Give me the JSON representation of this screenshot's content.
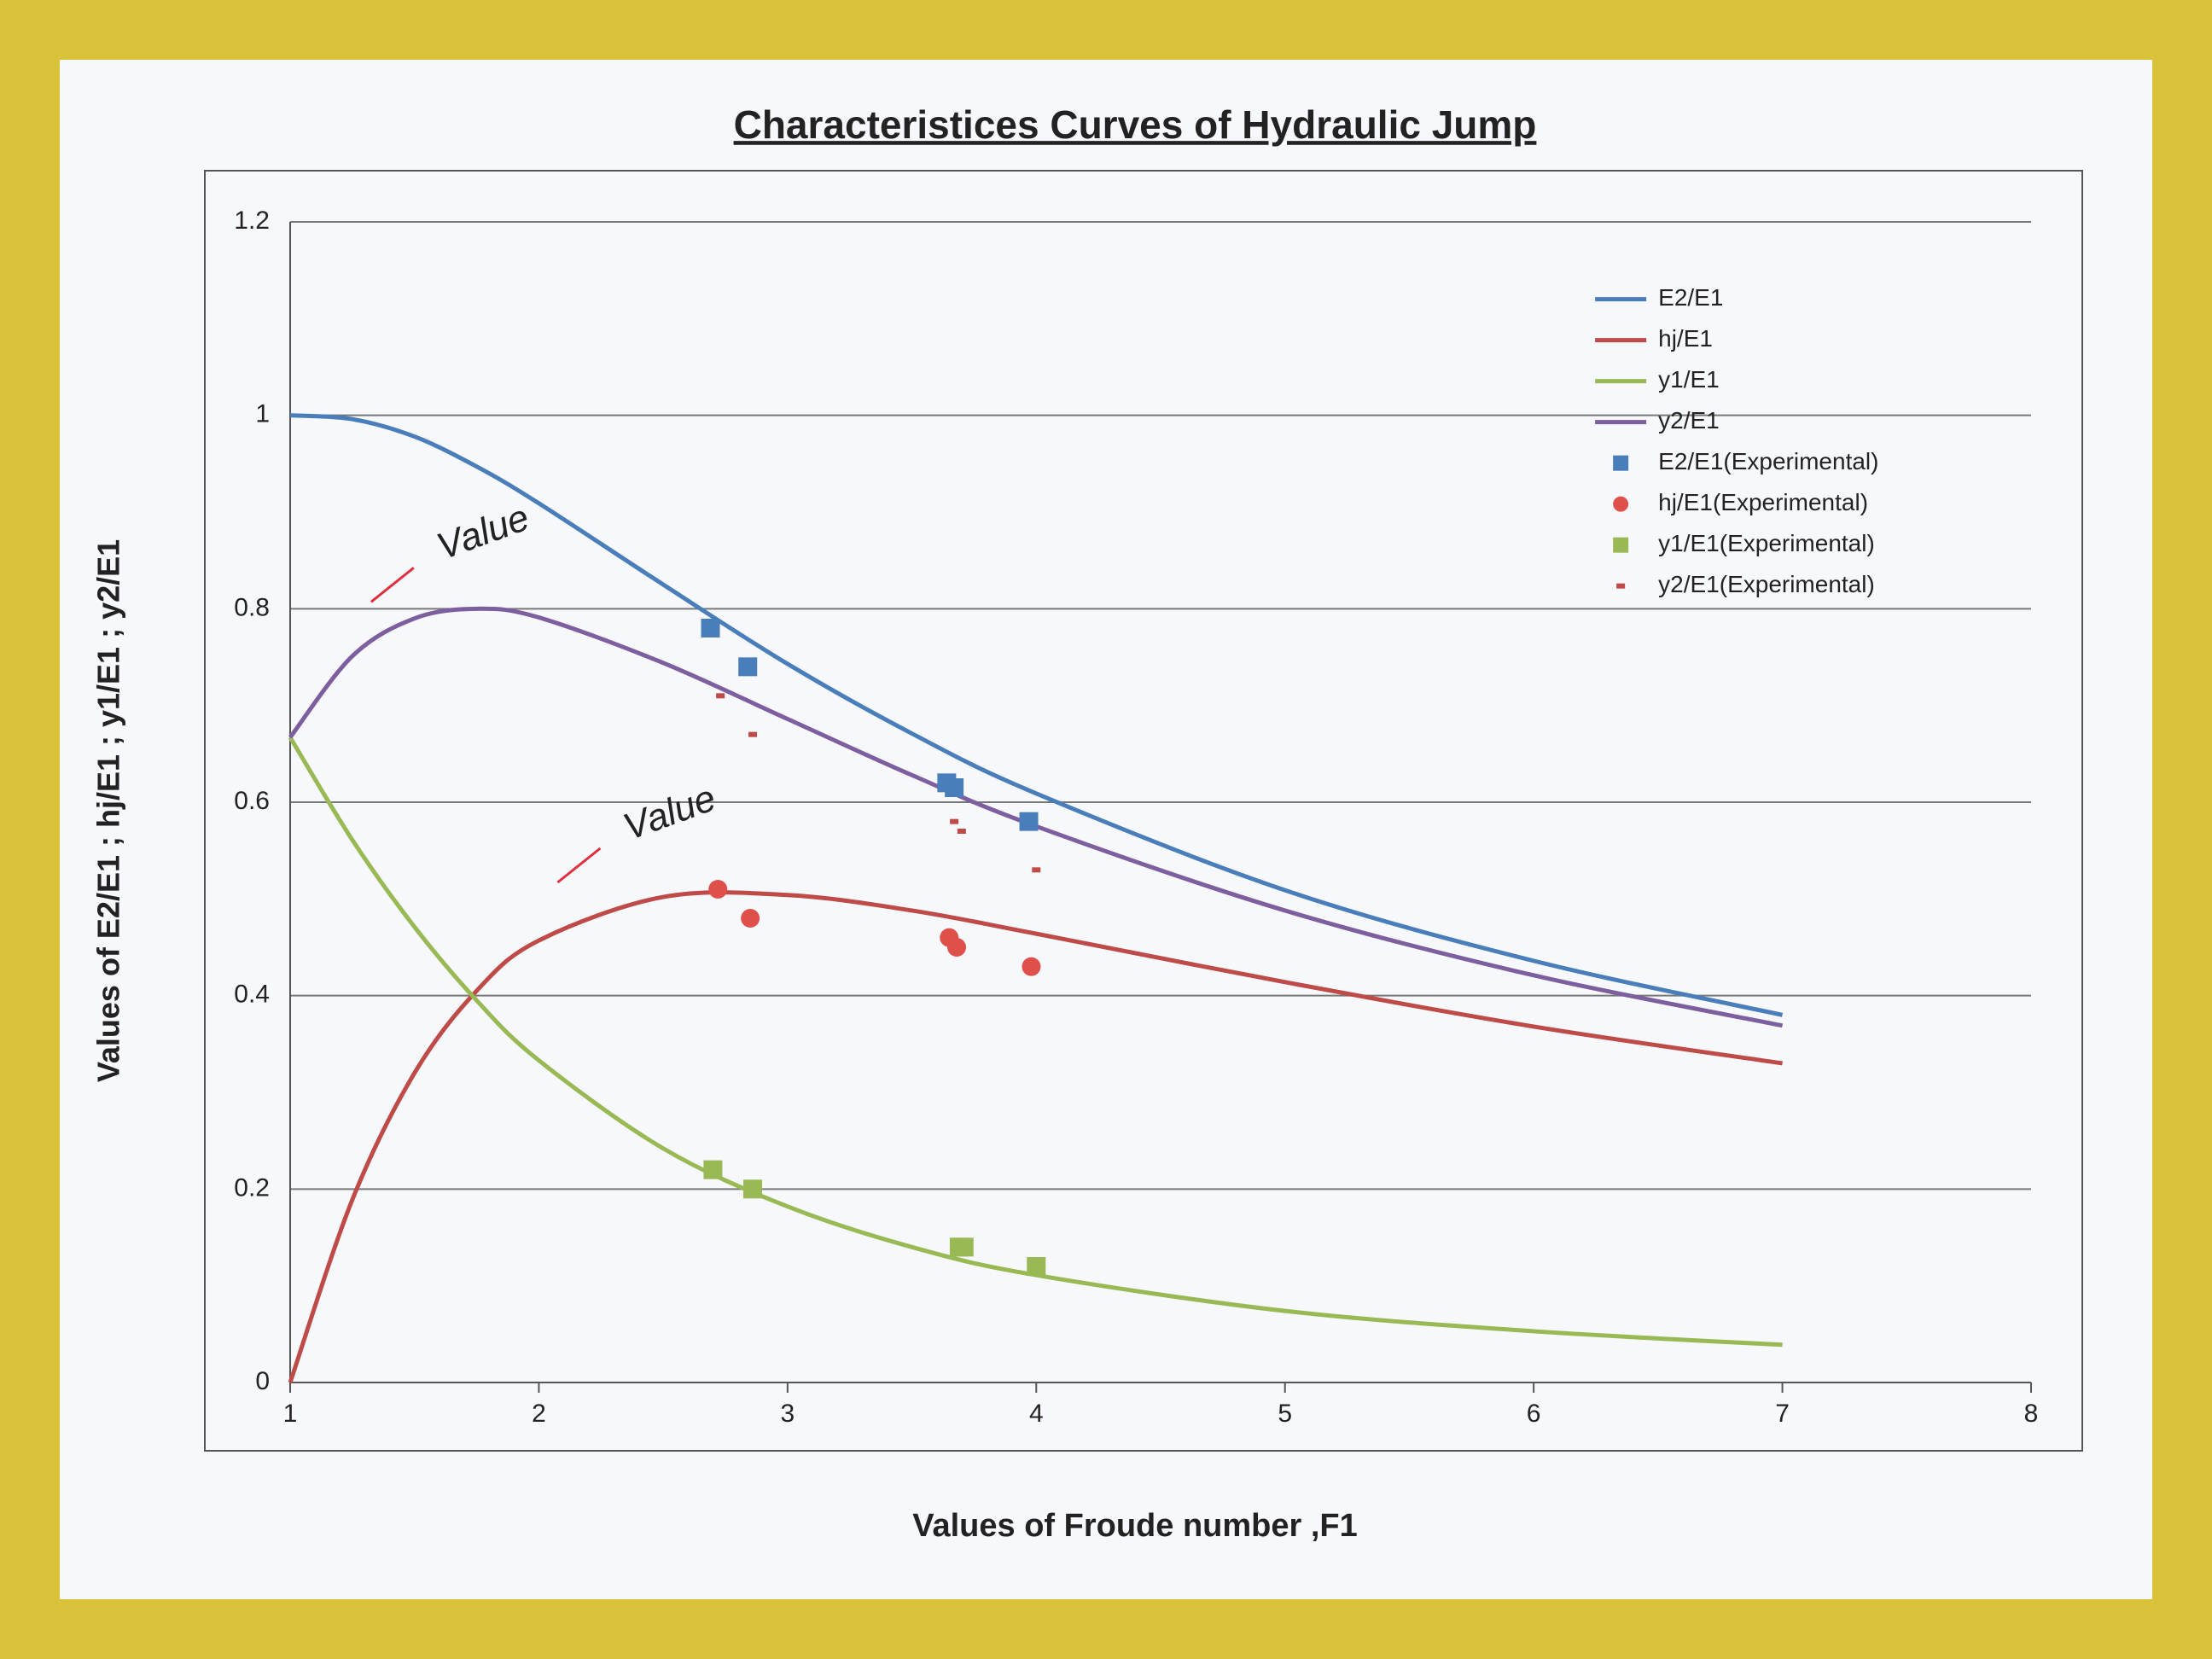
{
  "chart_data": {
    "type": "line",
    "title": "Characteristices Curves of  Hydraulic  Jump",
    "x_label": "Values of  Froude number ,F1",
    "y_label": "Values of   E2/E1 ;  hj/E1  ;   y1/E1 ;  y2/E1",
    "xlim": [
      1,
      8
    ],
    "ylim": [
      0,
      1.2
    ],
    "xticks": [
      1,
      2,
      3,
      4,
      5,
      6,
      7,
      8
    ],
    "yticks": [
      0,
      0.2,
      0.4,
      0.6,
      0.8,
      1,
      1.2
    ],
    "grid": true,
    "legend": "upper right",
    "annotations": [
      "Value",
      "Value"
    ],
    "series": [
      {
        "name": "E2/E1",
        "color": "#4a7ebb",
        "marker": "line",
        "x": [
          1,
          1.25,
          1.5,
          1.75,
          2,
          2.5,
          3,
          3.5,
          4,
          5,
          6,
          7
        ],
        "values": [
          1,
          0.996,
          0.978,
          0.947,
          0.909,
          0.825,
          0.743,
          0.671,
          0.609,
          0.509,
          0.436,
          0.38
        ]
      },
      {
        "name": "hj/E1",
        "color": "#be4b48",
        "marker": "line",
        "x": [
          1,
          1.25,
          1.5,
          1.75,
          2,
          2.5,
          3,
          3.5,
          4,
          5,
          6,
          7
        ],
        "values": [
          0,
          0.189,
          0.32,
          0.405,
          0.457,
          0.502,
          0.504,
          0.488,
          0.464,
          0.414,
          0.368,
          0.33
        ]
      },
      {
        "name": "y1/E1",
        "color": "#98b954",
        "marker": "line",
        "x": [
          1,
          1.25,
          1.5,
          1.75,
          2,
          2.5,
          3,
          3.5,
          4,
          5,
          6,
          7
        ],
        "values": [
          0.667,
          0.561,
          0.471,
          0.395,
          0.333,
          0.242,
          0.182,
          0.14,
          0.111,
          0.074,
          0.053,
          0.039
        ]
      },
      {
        "name": "y2/E1",
        "color": "#7d5fa0",
        "marker": "line",
        "x": [
          1,
          1.25,
          1.5,
          1.75,
          2,
          2.5,
          3,
          3.5,
          4,
          5,
          6,
          7
        ],
        "values": [
          0.667,
          0.751,
          0.79,
          0.8,
          0.791,
          0.744,
          0.686,
          0.628,
          0.575,
          0.488,
          0.421,
          0.369
        ]
      },
      {
        "name": "E2/E1(Experimental)",
        "color": "#4a7ebb",
        "marker": "square",
        "x": [
          2.69,
          2.84,
          3.64,
          3.67,
          3.97
        ],
        "values": [
          0.78,
          0.74,
          0.62,
          0.615,
          0.58
        ]
      },
      {
        "name": "hj/E1(Experimental)",
        "color": "#e0504a",
        "marker": "circle",
        "x": [
          2.72,
          2.85,
          3.65,
          3.68,
          3.98
        ],
        "values": [
          0.51,
          0.48,
          0.46,
          0.45,
          0.43
        ]
      },
      {
        "name": "y1/E1(Experimental)",
        "color": "#98b954",
        "marker": "square",
        "x": [
          2.7,
          2.86,
          3.69,
          3.71,
          4.0
        ],
        "values": [
          0.22,
          0.2,
          0.14,
          0.14,
          0.12
        ]
      },
      {
        "name": "y2/E1(Experimental)",
        "color": "#be4b48",
        "marker": "dash",
        "x": [
          2.73,
          2.86,
          3.67,
          3.7,
          4.0
        ],
        "values": [
          0.71,
          0.67,
          0.58,
          0.57,
          0.53
        ]
      }
    ]
  }
}
